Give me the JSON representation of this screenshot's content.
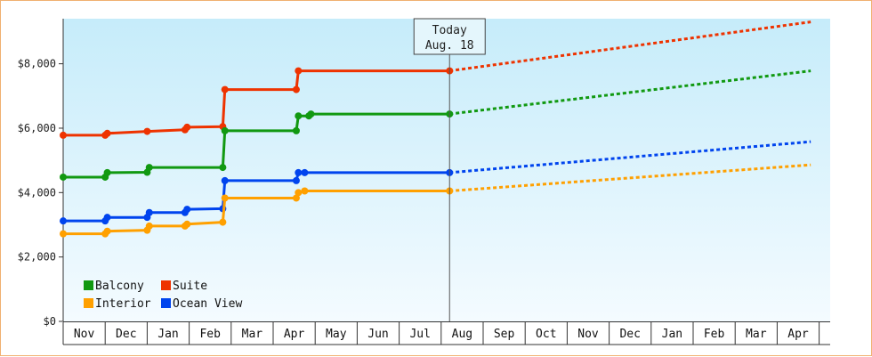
{
  "chart_data": {
    "type": "line",
    "x_axis_type": "monthly timeline (step history + dashed projection)",
    "categories": [
      "Nov",
      "Dec",
      "Jan",
      "Feb",
      "Mar",
      "Apr",
      "May",
      "Jun",
      "Jul",
      "Aug",
      "Sep",
      "Oct",
      "Nov",
      "Dec",
      "Jan",
      "Feb",
      "Mar",
      "Apr"
    ],
    "yticks": [
      "$0",
      "$2,000",
      "$4,000",
      "$6,000",
      "$8,000"
    ],
    "ylim": [
      0,
      9400
    ],
    "today": {
      "line1": "Today",
      "line2": "Aug. 18",
      "x": 9.2
    },
    "projection_end_x": 17.8,
    "legend": {
      "placement": "bottom-left",
      "items": [
        {
          "name": "Balcony",
          "color": "#119911"
        },
        {
          "name": "Suite",
          "color": "#ee3300"
        },
        {
          "name": "Interior",
          "color": "#ffa000"
        },
        {
          "name": "Ocean View",
          "color": "#0044ee"
        }
      ]
    },
    "series": [
      {
        "name": "Suite",
        "color": "#ee3300",
        "points": [
          [
            0,
            5780
          ],
          [
            1.0,
            5780
          ],
          [
            1.05,
            5840
          ],
          [
            2.0,
            5900
          ],
          [
            2.9,
            5950
          ],
          [
            2.95,
            6030
          ],
          [
            3.8,
            6050
          ],
          [
            3.85,
            7200
          ],
          [
            5.55,
            7200
          ],
          [
            5.6,
            7780
          ],
          [
            9.2,
            7780
          ]
        ],
        "projection_end": 9300
      },
      {
        "name": "Balcony",
        "color": "#119911",
        "points": [
          [
            0,
            4480
          ],
          [
            1.0,
            4480
          ],
          [
            1.05,
            4620
          ],
          [
            2.0,
            4630
          ],
          [
            2.05,
            4780
          ],
          [
            3.8,
            4780
          ],
          [
            3.85,
            5920
          ],
          [
            5.55,
            5920
          ],
          [
            5.6,
            6380
          ],
          [
            5.85,
            6380
          ],
          [
            5.9,
            6440
          ],
          [
            9.2,
            6440
          ]
        ],
        "projection_end": 7780
      },
      {
        "name": "Ocean View",
        "color": "#0044ee",
        "points": [
          [
            0,
            3120
          ],
          [
            1.0,
            3120
          ],
          [
            1.05,
            3230
          ],
          [
            2.0,
            3230
          ],
          [
            2.05,
            3380
          ],
          [
            2.9,
            3380
          ],
          [
            2.95,
            3480
          ],
          [
            3.8,
            3500
          ],
          [
            3.85,
            4370
          ],
          [
            5.55,
            4370
          ],
          [
            5.6,
            4620
          ],
          [
            5.75,
            4620
          ],
          [
            9.2,
            4620
          ]
        ],
        "projection_end": 5580
      },
      {
        "name": "Interior",
        "color": "#ffa000",
        "points": [
          [
            0,
            2720
          ],
          [
            1.0,
            2720
          ],
          [
            1.05,
            2800
          ],
          [
            2.0,
            2830
          ],
          [
            2.05,
            2960
          ],
          [
            2.9,
            2960
          ],
          [
            2.95,
            3020
          ],
          [
            3.8,
            3080
          ],
          [
            3.85,
            3830
          ],
          [
            5.55,
            3830
          ],
          [
            5.6,
            4000
          ],
          [
            5.75,
            4050
          ],
          [
            9.2,
            4050
          ]
        ],
        "projection_end": 4860
      }
    ]
  }
}
